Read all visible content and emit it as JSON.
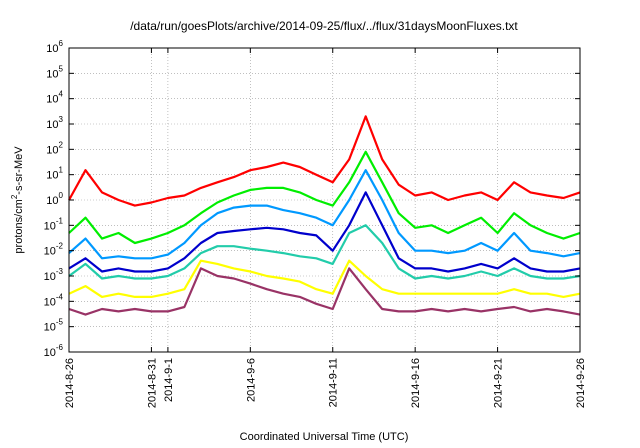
{
  "chart_data": {
    "type": "line",
    "title": "/data/run/goesPlots/archive/2014-09-25/flux/../flux/31daysMoonFluxes.txt",
    "xlabel": "Coordinated Universal Time (UTC)",
    "ylabel": "protons/cm²-s-sr-MeV",
    "yscale": "log",
    "ylim": [
      1e-06,
      1000000.0
    ],
    "xlim": [
      "2014-08-26",
      "2014-09-26"
    ],
    "x_ticks": [
      "2014-8-26",
      "2014-8-31",
      "2014-9-1",
      "2014-9-6",
      "2014-9-11",
      "2014-9-16",
      "2014-9-21",
      "2014-9-26"
    ],
    "y_ticks": [
      "10-6",
      "10-5",
      "10-4",
      "10-3",
      "10-2",
      "10-1",
      "100",
      "101",
      "102",
      "103",
      "104",
      "105",
      "106"
    ],
    "grid": true,
    "series": [
      {
        "color": "#ff0000",
        "x": [
          "2014-08-26",
          "2014-08-27",
          "2014-08-28",
          "2014-08-29",
          "2014-08-30",
          "2014-08-31",
          "2014-09-01",
          "2014-09-02",
          "2014-09-03",
          "2014-09-04",
          "2014-09-05",
          "2014-09-06",
          "2014-09-07",
          "2014-09-08",
          "2014-09-09",
          "2014-09-10",
          "2014-09-11",
          "2014-09-12",
          "2014-09-13",
          "2014-09-14",
          "2014-09-15",
          "2014-09-16",
          "2014-09-17",
          "2014-09-18",
          "2014-09-19",
          "2014-09-20",
          "2014-09-21",
          "2014-09-22",
          "2014-09-23",
          "2014-09-24",
          "2014-09-25",
          "2014-09-26"
        ],
        "y": [
          1.0,
          15,
          2,
          1,
          0.6,
          0.8,
          1.2,
          1.5,
          3,
          5,
          8,
          15,
          20,
          30,
          20,
          10,
          5,
          40,
          2000,
          40,
          4,
          1.5,
          2,
          1,
          1.5,
          2,
          1,
          5,
          2,
          1.5,
          1.2,
          2
        ]
      },
      {
        "color": "#00ee00",
        "x": [
          "2014-08-26",
          "2014-08-27",
          "2014-08-28",
          "2014-08-29",
          "2014-08-30",
          "2014-08-31",
          "2014-09-01",
          "2014-09-02",
          "2014-09-03",
          "2014-09-04",
          "2014-09-05",
          "2014-09-06",
          "2014-09-07",
          "2014-09-08",
          "2014-09-09",
          "2014-09-10",
          "2014-09-11",
          "2014-09-12",
          "2014-09-13",
          "2014-09-14",
          "2014-09-15",
          "2014-09-16",
          "2014-09-17",
          "2014-09-18",
          "2014-09-19",
          "2014-09-20",
          "2014-09-21",
          "2014-09-22",
          "2014-09-23",
          "2014-09-24",
          "2014-09-25",
          "2014-09-26"
        ],
        "y": [
          0.05,
          0.2,
          0.03,
          0.05,
          0.02,
          0.03,
          0.05,
          0.1,
          0.3,
          0.8,
          1.5,
          2.5,
          3,
          3,
          2,
          1,
          0.6,
          5,
          80,
          5,
          0.3,
          0.08,
          0.1,
          0.05,
          0.1,
          0.2,
          0.05,
          0.3,
          0.1,
          0.05,
          0.03,
          0.05
        ]
      },
      {
        "color": "#0099ff",
        "x": [
          "2014-08-26",
          "2014-08-27",
          "2014-08-28",
          "2014-08-29",
          "2014-08-30",
          "2014-08-31",
          "2014-09-01",
          "2014-09-02",
          "2014-09-03",
          "2014-09-04",
          "2014-09-05",
          "2014-09-06",
          "2014-09-07",
          "2014-09-08",
          "2014-09-09",
          "2014-09-10",
          "2014-09-11",
          "2014-09-12",
          "2014-09-13",
          "2014-09-14",
          "2014-09-15",
          "2014-09-16",
          "2014-09-17",
          "2014-09-18",
          "2014-09-19",
          "2014-09-20",
          "2014-09-21",
          "2014-09-22",
          "2014-09-23",
          "2014-09-24",
          "2014-09-25",
          "2014-09-26"
        ],
        "y": [
          0.008,
          0.03,
          0.005,
          0.006,
          0.005,
          0.005,
          0.007,
          0.02,
          0.1,
          0.3,
          0.5,
          0.6,
          0.6,
          0.4,
          0.3,
          0.2,
          0.1,
          1,
          15,
          1,
          0.05,
          0.01,
          0.01,
          0.008,
          0.01,
          0.02,
          0.01,
          0.05,
          0.01,
          0.008,
          0.006,
          0.008
        ]
      },
      {
        "color": "#0000cc",
        "x": [
          "2014-08-26",
          "2014-08-27",
          "2014-08-28",
          "2014-08-29",
          "2014-08-30",
          "2014-08-31",
          "2014-09-01",
          "2014-09-02",
          "2014-09-03",
          "2014-09-04",
          "2014-09-05",
          "2014-09-06",
          "2014-09-07",
          "2014-09-08",
          "2014-09-09",
          "2014-09-10",
          "2014-09-11",
          "2014-09-12",
          "2014-09-13",
          "2014-09-14",
          "2014-09-15",
          "2014-09-16",
          "2014-09-17",
          "2014-09-18",
          "2014-09-19",
          "2014-09-20",
          "2014-09-21",
          "2014-09-22",
          "2014-09-23",
          "2014-09-24",
          "2014-09-25",
          "2014-09-26"
        ],
        "y": [
          0.002,
          0.005,
          0.0015,
          0.002,
          0.0015,
          0.0015,
          0.002,
          0.005,
          0.02,
          0.05,
          0.06,
          0.07,
          0.08,
          0.07,
          0.05,
          0.04,
          0.01,
          0.1,
          2,
          0.1,
          0.005,
          0.002,
          0.002,
          0.0015,
          0.002,
          0.003,
          0.002,
          0.005,
          0.002,
          0.0015,
          0.0015,
          0.002
        ]
      },
      {
        "color": "#22ccaa",
        "x": [
          "2014-08-26",
          "2014-08-27",
          "2014-08-28",
          "2014-08-29",
          "2014-08-30",
          "2014-08-31",
          "2014-09-01",
          "2014-09-02",
          "2014-09-03",
          "2014-09-04",
          "2014-09-05",
          "2014-09-06",
          "2014-09-07",
          "2014-09-08",
          "2014-09-09",
          "2014-09-10",
          "2014-09-11",
          "2014-09-12",
          "2014-09-13",
          "2014-09-14",
          "2014-09-15",
          "2014-09-16",
          "2014-09-17",
          "2014-09-18",
          "2014-09-19",
          "2014-09-20",
          "2014-09-21",
          "2014-09-22",
          "2014-09-23",
          "2014-09-24",
          "2014-09-25",
          "2014-09-26"
        ],
        "y": [
          0.001,
          0.003,
          0.0008,
          0.001,
          0.0008,
          0.0008,
          0.001,
          0.002,
          0.008,
          0.015,
          0.015,
          0.012,
          0.01,
          0.008,
          0.006,
          0.005,
          0.003,
          0.05,
          0.1,
          0.02,
          0.002,
          0.0008,
          0.001,
          0.0008,
          0.001,
          0.0015,
          0.001,
          0.002,
          0.001,
          0.0008,
          0.0008,
          0.001
        ]
      },
      {
        "color": "#ffff00",
        "x": [
          "2014-08-26",
          "2014-08-27",
          "2014-08-28",
          "2014-08-29",
          "2014-08-30",
          "2014-08-31",
          "2014-09-01",
          "2014-09-02",
          "2014-09-03",
          "2014-09-04",
          "2014-09-05",
          "2014-09-06",
          "2014-09-07",
          "2014-09-08",
          "2014-09-09",
          "2014-09-10",
          "2014-09-11",
          "2014-09-12",
          "2014-09-13",
          "2014-09-14",
          "2014-09-15",
          "2014-09-16",
          "2014-09-17",
          "2014-09-18",
          "2014-09-19",
          "2014-09-20",
          "2014-09-21",
          "2014-09-22",
          "2014-09-23",
          "2014-09-24",
          "2014-09-25",
          "2014-09-26"
        ],
        "y": [
          0.0002,
          0.0004,
          0.00015,
          0.0002,
          0.00015,
          0.00015,
          0.0002,
          0.0003,
          0.004,
          0.003,
          0.002,
          0.0015,
          0.001,
          0.0008,
          0.0006,
          0.0003,
          0.0002,
          0.004,
          0.001,
          0.0003,
          0.0002,
          0.0002,
          0.0002,
          0.0002,
          0.0002,
          0.0002,
          0.0002,
          0.0003,
          0.0002,
          0.0002,
          0.00015,
          0.0002
        ]
      },
      {
        "color": "#993366",
        "x": [
          "2014-08-26",
          "2014-08-27",
          "2014-08-28",
          "2014-08-29",
          "2014-08-30",
          "2014-08-31",
          "2014-09-01",
          "2014-09-02",
          "2014-09-03",
          "2014-09-04",
          "2014-09-05",
          "2014-09-06",
          "2014-09-07",
          "2014-09-08",
          "2014-09-09",
          "2014-09-10",
          "2014-09-11",
          "2014-09-12",
          "2014-09-13",
          "2014-09-14",
          "2014-09-15",
          "2014-09-16",
          "2014-09-17",
          "2014-09-18",
          "2014-09-19",
          "2014-09-20",
          "2014-09-21",
          "2014-09-22",
          "2014-09-23",
          "2014-09-24",
          "2014-09-25",
          "2014-09-26"
        ],
        "y": [
          5e-05,
          3e-05,
          5e-05,
          4e-05,
          5e-05,
          4e-05,
          4e-05,
          6e-05,
          0.002,
          0.001,
          0.0008,
          0.0005,
          0.0003,
          0.0002,
          0.00015,
          8e-05,
          5e-05,
          0.002,
          0.0003,
          5e-05,
          4e-05,
          4e-05,
          5e-05,
          4e-05,
          5e-05,
          4e-05,
          5e-05,
          6e-05,
          4e-05,
          5e-05,
          4e-05,
          3e-05
        ]
      }
    ]
  }
}
